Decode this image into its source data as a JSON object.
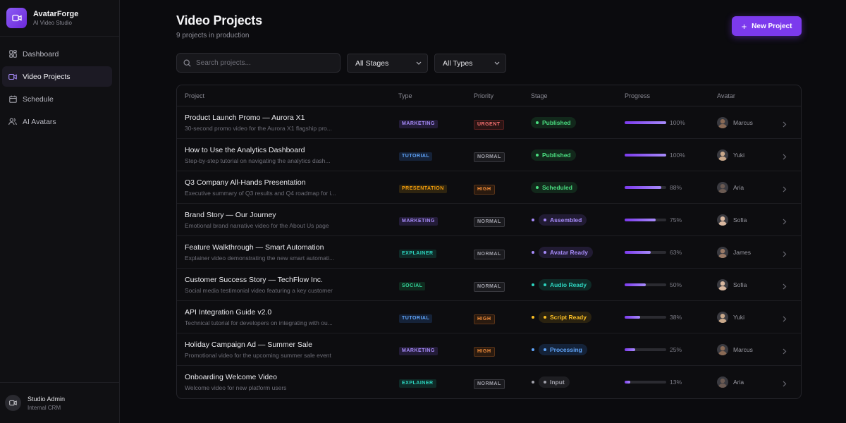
{
  "app": {
    "name": "AvatarForge",
    "subtitle": "AI Video Studio"
  },
  "sidebar": {
    "items": [
      {
        "label": "Dashboard",
        "icon": "grid-icon",
        "active": false
      },
      {
        "label": "Video Projects",
        "icon": "video-icon",
        "active": true
      },
      {
        "label": "Schedule",
        "icon": "calendar-icon",
        "active": false
      },
      {
        "label": "AI Avatars",
        "icon": "users-icon",
        "active": false
      }
    ],
    "footer": {
      "name": "Studio Admin",
      "role": "Internal CRM",
      "icon": "video-icon"
    }
  },
  "header": {
    "title": "Video Projects",
    "subtitle": "9 projects in production",
    "new_button": "New Project"
  },
  "filters": {
    "search_placeholder": "Search projects...",
    "stage_selected": "All Stages",
    "type_selected": "All Types"
  },
  "table": {
    "columns": [
      "Project",
      "Type",
      "Priority",
      "Stage",
      "Progress",
      "Avatar"
    ],
    "rows": [
      {
        "title": "Product Launch Promo — Aurora X1",
        "desc": "30-second promo video for the Aurora X1 flagship pro...",
        "type": "MARKETING",
        "priority": "URGENT",
        "stage": "Published",
        "stage_dot": false,
        "progress": 100,
        "progress_label": "100%",
        "avatar": "Marcus"
      },
      {
        "title": "How to Use the Analytics Dashboard",
        "desc": "Step-by-step tutorial on navigating the analytics dash...",
        "type": "TUTORIAL",
        "priority": "NORMAL",
        "stage": "Published",
        "stage_dot": false,
        "progress": 100,
        "progress_label": "100%",
        "avatar": "Yuki"
      },
      {
        "title": "Q3 Company All-Hands Presentation",
        "desc": "Executive summary of Q3 results and Q4 roadmap for i...",
        "type": "PRESENTATION",
        "priority": "HIGH",
        "stage": "Scheduled",
        "stage_dot": false,
        "progress": 88,
        "progress_label": "88%",
        "avatar": "Aria"
      },
      {
        "title": "Brand Story — Our Journey",
        "desc": "Emotional brand narrative video for the About Us page",
        "type": "MARKETING",
        "priority": "NORMAL",
        "stage": "Assembled",
        "stage_dot": true,
        "progress": 75,
        "progress_label": "75%",
        "avatar": "Sofia"
      },
      {
        "title": "Feature Walkthrough — Smart Automation",
        "desc": "Explainer video demonstrating the new smart automati...",
        "type": "EXPLAINER",
        "priority": "NORMAL",
        "stage": "Avatar Ready",
        "stage_dot": true,
        "progress": 63,
        "progress_label": "63%",
        "avatar": "James"
      },
      {
        "title": "Customer Success Story — TechFlow Inc.",
        "desc": "Social media testimonial video featuring a key customer",
        "type": "SOCIAL",
        "priority": "NORMAL",
        "stage": "Audio Ready",
        "stage_dot": true,
        "progress": 50,
        "progress_label": "50%",
        "avatar": "Sofia"
      },
      {
        "title": "API Integration Guide v2.0",
        "desc": "Technical tutorial for developers on integrating with ou...",
        "type": "TUTORIAL",
        "priority": "HIGH",
        "stage": "Script Ready",
        "stage_dot": true,
        "progress": 38,
        "progress_label": "38%",
        "avatar": "Yuki"
      },
      {
        "title": "Holiday Campaign Ad — Summer Sale",
        "desc": "Promotional video for the upcoming summer sale event",
        "type": "MARKETING",
        "priority": "HIGH",
        "stage": "Processing",
        "stage_dot": true,
        "progress": 25,
        "progress_label": "25%",
        "avatar": "Marcus"
      },
      {
        "title": "Onboarding Welcome Video",
        "desc": "Welcome video for new platform users",
        "type": "EXPLAINER",
        "priority": "NORMAL",
        "stage": "Input",
        "stage_dot": true,
        "progress": 13,
        "progress_label": "13%",
        "avatar": "Aria"
      }
    ]
  },
  "colors": {
    "accent": "#7c3aed",
    "type": {
      "MARKETING": {
        "fg": "#a78bfa",
        "bg": "#231c38"
      },
      "TUTORIAL": {
        "fg": "#60a5fa",
        "bg": "#152238"
      },
      "PRESENTATION": {
        "fg": "#f59e0b",
        "bg": "#2e2410"
      },
      "EXPLAINER": {
        "fg": "#2dd4bf",
        "bg": "#0f2a27"
      },
      "SOCIAL": {
        "fg": "#34d399",
        "bg": "#0f2a1e"
      }
    },
    "priority": {
      "URGENT": {
        "fg": "#f87171",
        "bg": "#2a1414",
        "border": "#5a2020"
      },
      "HIGH": {
        "fg": "#fb923c",
        "bg": "#2a1a0f",
        "border": "#5a3418"
      },
      "NORMAL": {
        "fg": "#a1a1aa",
        "bg": "#1a1a1e",
        "border": "#3a3a40"
      }
    },
    "stage": {
      "Published": {
        "fg": "#4ade80",
        "bg": "#12281b",
        "dot": "#4ade80"
      },
      "Scheduled": {
        "fg": "#4ade80",
        "bg": "#12281b",
        "dot": "#4ade80"
      },
      "Assembled": {
        "fg": "#a78bfa",
        "bg": "#211b33",
        "dot": "#a78bfa"
      },
      "Avatar Ready": {
        "fg": "#a78bfa",
        "bg": "#211b33",
        "dot": "#a78bfa"
      },
      "Audio Ready": {
        "fg": "#2dd4bf",
        "bg": "#0f2a27",
        "dot": "#2dd4bf"
      },
      "Script Ready": {
        "fg": "#fbbf24",
        "bg": "#2a2210",
        "dot": "#fbbf24"
      },
      "Processing": {
        "fg": "#60a5fa",
        "bg": "#142238",
        "dot": "#60a5fa"
      },
      "Input": {
        "fg": "#a1a1aa",
        "bg": "#1e1e22",
        "dot": "#a1a1aa"
      }
    },
    "avatar": {
      "Marcus": "#8a6a55",
      "Yuki": "#c9a88a",
      "Aria": "#6b5a52",
      "Sofia": "#d9b8a0",
      "James": "#9a7a66"
    }
  }
}
